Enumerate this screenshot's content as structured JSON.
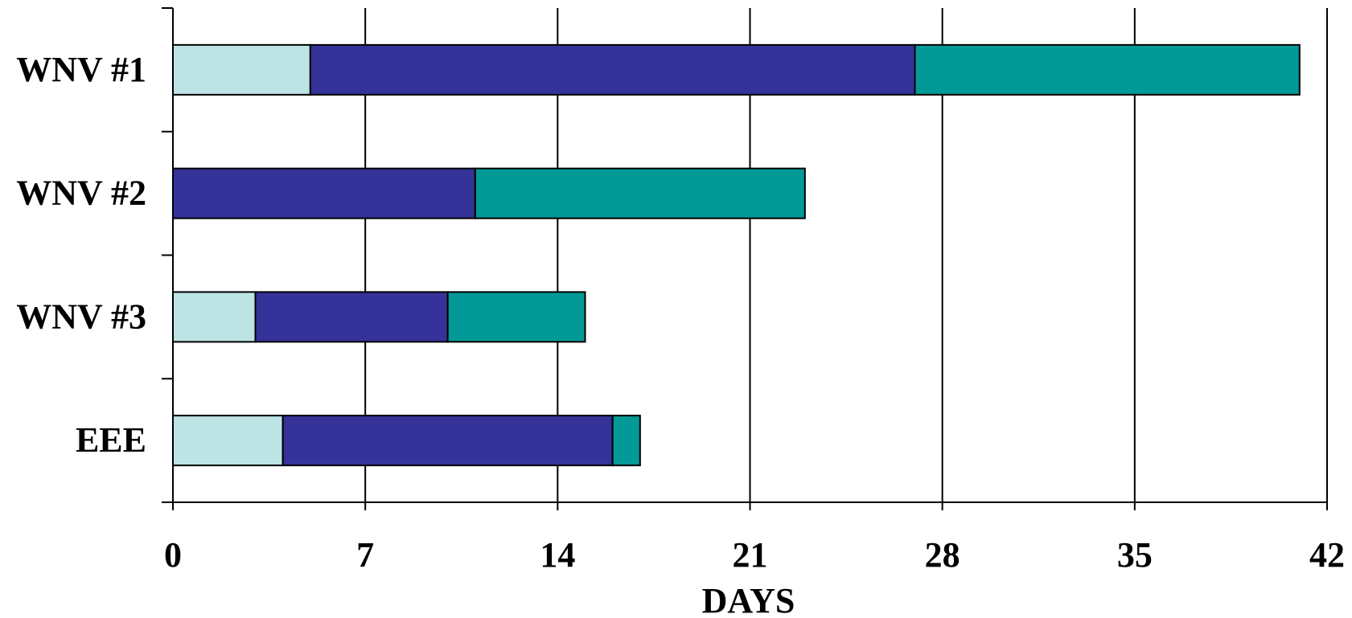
{
  "chart_data": {
    "type": "bar",
    "orientation": "horizontal",
    "stacked": true,
    "categories": [
      "WNV #1",
      "WNV #2",
      "WNV #3",
      "EEE"
    ],
    "series": [
      {
        "values": [
          5,
          0,
          3,
          4
        ],
        "color": "#bde3e5"
      },
      {
        "values": [
          22,
          11,
          7,
          12
        ],
        "color": "#353399"
      },
      {
        "values": [
          14,
          12,
          5,
          1
        ],
        "color": "#029996"
      }
    ],
    "xlabel": "DAYS",
    "ylabel": "",
    "xlim": [
      0,
      42
    ],
    "xticks": [
      "0",
      "7",
      "14",
      "21",
      "28",
      "35",
      "42"
    ],
    "xtick_values": [
      0,
      7,
      14,
      21,
      28,
      35,
      42
    ],
    "grid": "vertical"
  }
}
